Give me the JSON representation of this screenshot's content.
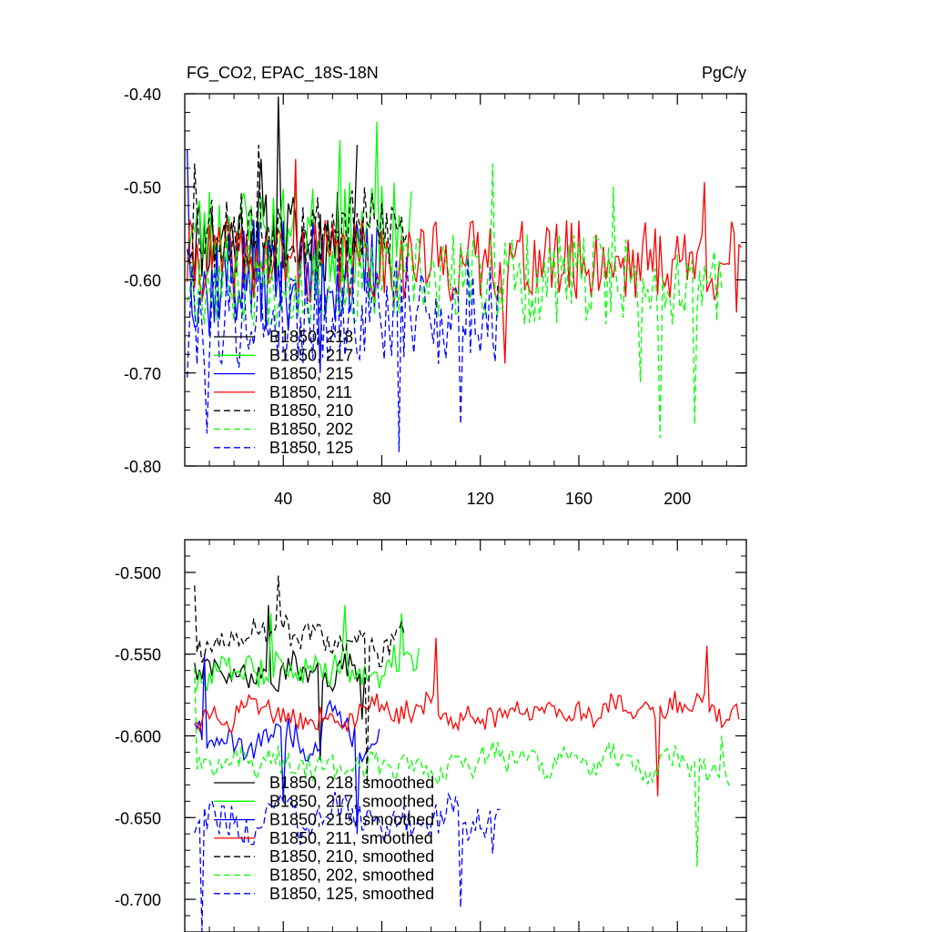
{
  "chart_data": [
    {
      "type": "line",
      "title": "FG_CO2, EPAC_18S-18N",
      "units_label": "PgC/y",
      "xlabel": "",
      "ylabel": "",
      "xlim": [
        0,
        228
      ],
      "ylim": [
        -0.8,
        -0.4
      ],
      "x_ticks": [
        40,
        80,
        120,
        160,
        200
      ],
      "x_tick_labels": [
        "40",
        "80",
        "120",
        "160",
        "200"
      ],
      "y_ticks": [
        -0.4,
        -0.5,
        -0.6,
        -0.7,
        -0.8
      ],
      "y_tick_labels": [
        "-0.40",
        "-0.50",
        "-0.60",
        "-0.70",
        "-0.80"
      ],
      "legend_position": "lower-left",
      "series": [
        {
          "name": "B1850, 218",
          "color": "#000000",
          "dash": "solid",
          "length": 70,
          "base": -0.555,
          "amp": 0.05,
          "seed": 11,
          "spikes": [
            [
              38,
              -0.403
            ],
            [
              31,
              -0.47
            ],
            [
              70,
              -0.455
            ]
          ]
        },
        {
          "name": "B1850, 217",
          "color": "#00ff00",
          "dash": "solid",
          "length": 92,
          "base": -0.55,
          "amp": 0.055,
          "seed": 23,
          "spikes": [
            [
              78,
              -0.43
            ],
            [
              63,
              -0.45
            ],
            [
              84,
              -0.61
            ]
          ]
        },
        {
          "name": "B1850, 215",
          "color": "#0000ff",
          "dash": "solid",
          "length": 78,
          "base": -0.595,
          "amp": 0.06,
          "seed": 37,
          "spikes": [
            [
              1,
              -0.46
            ],
            [
              10,
              -0.66
            ],
            [
              55,
              -0.7
            ]
          ]
        },
        {
          "name": "B1850, 211",
          "color": "#ff0000",
          "dash": "solid",
          "length": 226,
          "base": -0.58,
          "amp": 0.045,
          "seed": 41,
          "spikes": [
            [
              45,
              -0.47
            ],
            [
              130,
              -0.69
            ],
            [
              211,
              -0.495
            ],
            [
              224,
              -0.635
            ]
          ]
        },
        {
          "name": "B1850, 210",
          "color": "#000000",
          "dash": "dash",
          "length": 90,
          "base": -0.545,
          "amp": 0.045,
          "seed": 53,
          "spikes": [
            [
              30,
              -0.455
            ],
            [
              4,
              -0.475
            ]
          ]
        },
        {
          "name": "B1850, 202",
          "color": "#00ff00",
          "dash": "dash",
          "length": 218,
          "base": -0.6,
          "amp": 0.05,
          "seed": 67,
          "spikes": [
            [
              125,
              -0.475
            ],
            [
              174,
              -0.5
            ],
            [
              193,
              -0.77
            ],
            [
              207,
              -0.755
            ],
            [
              185,
              -0.71
            ]
          ]
        },
        {
          "name": "B1850, 125",
          "color": "#0000ff",
          "dash": "dash",
          "length": 127,
          "base": -0.635,
          "amp": 0.06,
          "seed": 79,
          "spikes": [
            [
              9,
              -0.765
            ],
            [
              87,
              -0.785
            ],
            [
              112,
              -0.755
            ],
            [
              1,
              -0.705
            ]
          ]
        }
      ]
    },
    {
      "type": "line",
      "title": "",
      "xlabel": "",
      "ylabel": "",
      "xlim": [
        0,
        228
      ],
      "ylim": [
        -0.72,
        -0.48
      ],
      "x_ticks": [
        40,
        80,
        120,
        160,
        200
      ],
      "y_ticks": [
        -0.5,
        -0.55,
        -0.6,
        -0.65,
        -0.7
      ],
      "y_tick_labels": [
        "-0.500",
        "-0.550",
        "-0.600",
        "-0.650",
        "-0.700"
      ],
      "legend_position": "lower-left",
      "series": [
        {
          "name": "B1850, 218, smoothed",
          "color": "#000000",
          "dash": "solid",
          "start": 4,
          "length": 70,
          "base": -0.56,
          "amp": 0.02,
          "seed": 111,
          "spikes": [
            [
              34,
              -0.52
            ],
            [
              55,
              -0.615
            ],
            [
              72,
              -0.59
            ]
          ]
        },
        {
          "name": "B1850, 217, smoothed",
          "color": "#00ff00",
          "dash": "solid",
          "start": 4,
          "length": 92,
          "base": -0.56,
          "amp": 0.022,
          "seed": 123,
          "spikes": [
            [
              35,
              -0.525
            ],
            [
              65,
              -0.52
            ],
            [
              88,
              -0.525
            ]
          ]
        },
        {
          "name": "B1850, 215, smoothed",
          "color": "#0000ff",
          "dash": "solid",
          "start": 4,
          "length": 76,
          "base": -0.6,
          "amp": 0.025,
          "seed": 137,
          "spikes": [
            [
              8,
              -0.55
            ],
            [
              40,
              -0.64
            ],
            [
              70,
              -0.66
            ]
          ]
        },
        {
          "name": "B1850, 211, smoothed",
          "color": "#ff0000",
          "dash": "solid",
          "start": 4,
          "length": 222,
          "base": -0.585,
          "amp": 0.018,
          "seed": 141,
          "spikes": [
            [
              102,
              -0.54
            ],
            [
              192,
              -0.637
            ],
            [
              212,
              -0.545
            ],
            [
              220,
              -0.59
            ]
          ]
        },
        {
          "name": "B1850, 210, smoothed",
          "color": "#000000",
          "dash": "dash",
          "start": 4,
          "length": 86,
          "base": -0.54,
          "amp": 0.02,
          "seed": 153,
          "spikes": [
            [
              4,
              -0.508
            ],
            [
              38,
              -0.502
            ],
            [
              74,
              -0.63
            ]
          ]
        },
        {
          "name": "B1850, 202, smoothed",
          "color": "#00ff00",
          "dash": "dash",
          "start": 4,
          "length": 218,
          "base": -0.615,
          "amp": 0.02,
          "seed": 167,
          "spikes": [
            [
              4,
              -0.558
            ],
            [
              208,
              -0.68
            ],
            [
              218,
              -0.6
            ]
          ]
        },
        {
          "name": "B1850, 125, smoothed",
          "color": "#0000ff",
          "dash": "dash",
          "start": 4,
          "length": 125,
          "base": -0.65,
          "amp": 0.025,
          "seed": 179,
          "spikes": [
            [
              7,
              -0.72
            ],
            [
              112,
              -0.705
            ],
            [
              125,
              -0.672
            ]
          ]
        }
      ]
    }
  ]
}
